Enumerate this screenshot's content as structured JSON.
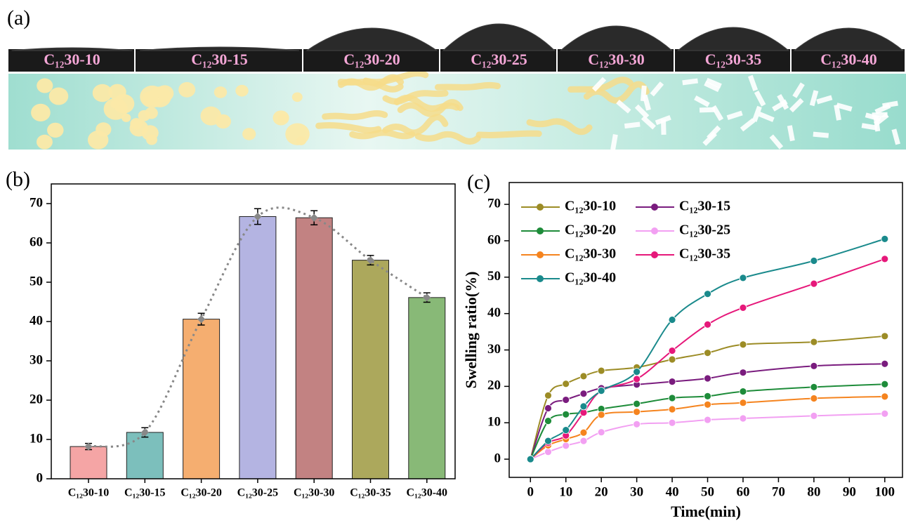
{
  "panel_a": {
    "panel_label": "(a)",
    "samples": [
      "C₁₂30-10",
      "C₁₂30-15",
      "C₁₂30-20",
      "C₁₂30-25",
      "C₁₂30-30",
      "C₁₂30-35",
      "C₁₂30-40"
    ]
  },
  "chart_data": [
    {
      "type": "bar",
      "panel_label": "(b)",
      "categories": [
        "C₁₂30-10",
        "C₁₂30-15",
        "C₁₂30-20",
        "C₁₂30-25",
        "C₁₂30-30",
        "C₁₂30-35",
        "C₁₂30-40"
      ],
      "values": [
        8.2,
        11.8,
        40.6,
        66.7,
        66.4,
        55.6,
        46.1
      ],
      "errors": [
        0.8,
        1.2,
        1.5,
        2.0,
        1.8,
        1.2,
        1.2
      ],
      "colors": [
        "#f5a5a5",
        "#7cbfbc",
        "#f5ae70",
        "#b4b4e2",
        "#c28282",
        "#aca85c",
        "#88b977"
      ],
      "ylim": [
        0,
        75
      ],
      "yticks": [
        0,
        10,
        20,
        30,
        40,
        50,
        60,
        70
      ]
    },
    {
      "type": "line",
      "panel_label": "(c)",
      "xlabel": "Time(min)",
      "ylabel": "Swelling ratio(%)",
      "x": [
        0,
        5,
        10,
        15,
        20,
        30,
        40,
        50,
        60,
        80,
        100
      ],
      "xlim": [
        -6,
        105
      ],
      "xticks": [
        0,
        10,
        20,
        30,
        40,
        50,
        60,
        70,
        80,
        90,
        100
      ],
      "ylim": [
        -5,
        76
      ],
      "yticks": [
        0,
        10,
        20,
        30,
        40,
        50,
        60,
        70
      ],
      "series": [
        {
          "name": "C₁₂30-10",
          "color": "#9c8c26",
          "values": [
            0,
            17.5,
            20.7,
            22.8,
            24.3,
            25.2,
            27.4,
            29.2,
            31.5,
            32.2,
            33.8
          ]
        },
        {
          "name": "C₁₂30-15",
          "color": "#7a1c7e",
          "values": [
            0,
            14,
            16.3,
            18,
            19.5,
            20.5,
            21.3,
            22.2,
            23.8,
            25.6,
            26.2
          ]
        },
        {
          "name": "C₁₂30-20",
          "color": "#1e8c3a",
          "values": [
            0,
            10.5,
            12.3,
            12.8,
            13.8,
            15.2,
            16.8,
            17.3,
            18.6,
            19.8,
            20.6
          ]
        },
        {
          "name": "C₁₂30-25",
          "color": "#f2a0f2",
          "values": [
            0,
            2,
            3.7,
            5,
            7.4,
            9.6,
            10,
            10.8,
            11.2,
            11.9,
            12.5
          ]
        },
        {
          "name": "C₁₂30-30",
          "color": "#f5841f",
          "values": [
            0,
            3.8,
            5.5,
            7.3,
            12.2,
            13,
            13.7,
            15,
            15.5,
            16.7,
            17.2
          ]
        },
        {
          "name": "C₁₂30-35",
          "color": "#e6187a",
          "values": [
            0,
            4.5,
            6.5,
            12.8,
            18.8,
            22,
            29.8,
            37,
            41.6,
            48.2,
            55
          ]
        },
        {
          "name": "C₁₂30-40",
          "color": "#1a8a8c",
          "values": [
            0,
            5,
            8,
            14.5,
            18.8,
            24,
            38.3,
            45.4,
            49.8,
            54.5,
            60.5
          ]
        }
      ]
    }
  ]
}
